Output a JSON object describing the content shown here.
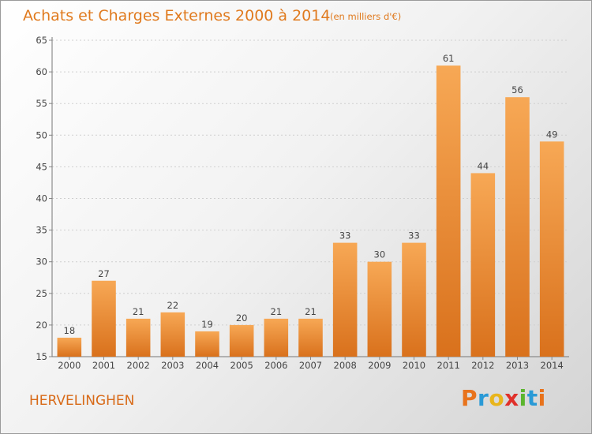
{
  "chart_data": {
    "type": "bar",
    "title": "Achats et Charges Externes 2000 à 2014",
    "subtitle": "(en milliers d'€)",
    "categories": [
      "2000",
      "2001",
      "2002",
      "2003",
      "2004",
      "2005",
      "2006",
      "2007",
      "2008",
      "2009",
      "2010",
      "2011",
      "2012",
      "2013",
      "2014"
    ],
    "values": [
      18,
      27,
      21,
      22,
      19,
      20,
      21,
      21,
      33,
      30,
      33,
      61,
      44,
      56,
      49
    ],
    "ylim": [
      15,
      65
    ],
    "yticks": [
      15,
      20,
      25,
      30,
      35,
      40,
      45,
      50,
      55,
      60,
      65
    ],
    "grid": true,
    "bar_color_top": "#f7a855",
    "bar_color_bottom": "#d9711c"
  },
  "commune": "HERVELINGHEN",
  "logo": {
    "letters": [
      "P",
      "r",
      "o",
      "x",
      "i",
      "t",
      "i"
    ],
    "colors": [
      "#e8731c",
      "#2a9ad6",
      "#e8b51c",
      "#e0302a",
      "#5bb52e",
      "#2a9ad6",
      "#e8731c"
    ]
  }
}
